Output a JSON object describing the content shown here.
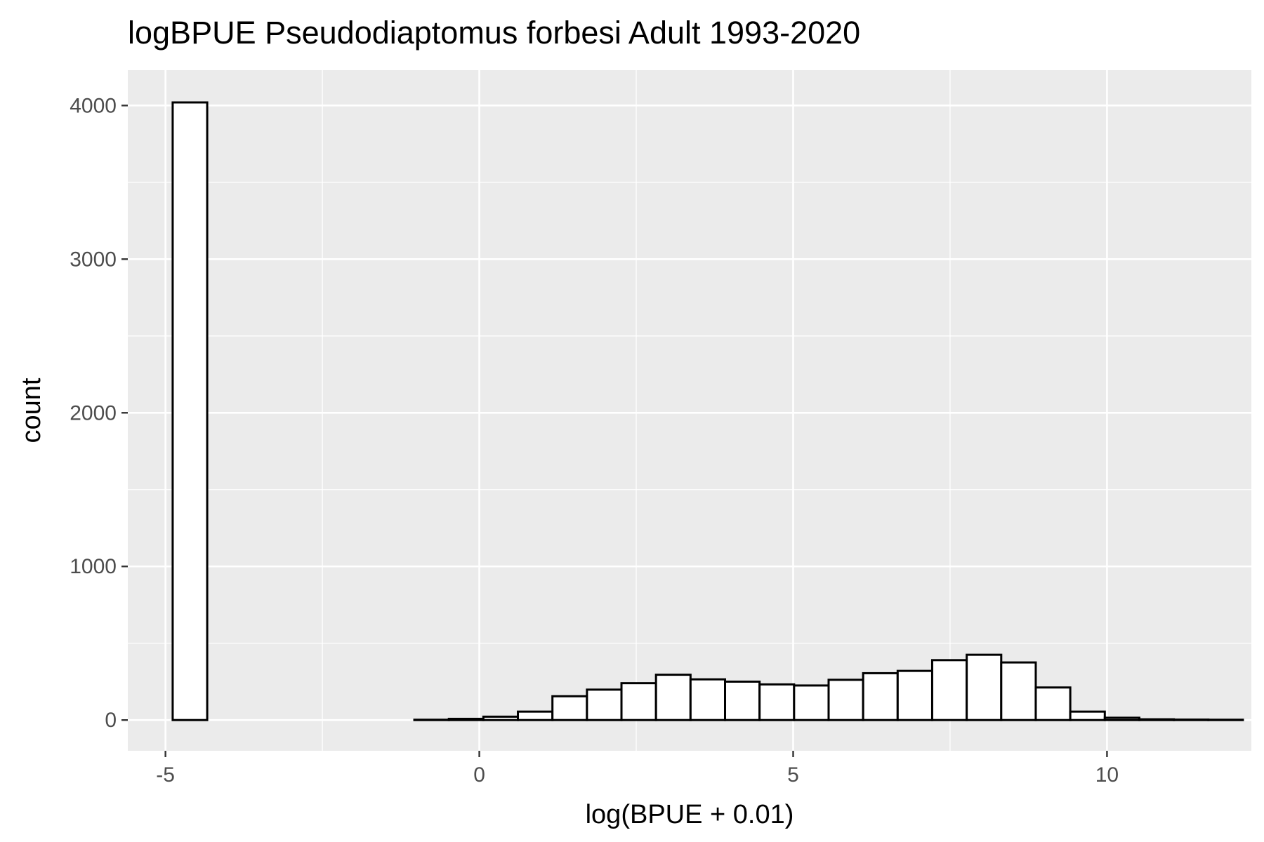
{
  "chart_data": {
    "type": "bar",
    "title": "logBPUE Pseudodiaptomus forbesi Adult  1993-2020",
    "xlabel": "log(BPUE + 0.01)",
    "ylabel": "count",
    "xlim": [
      -5.6,
      12.3
    ],
    "ylim": [
      -200,
      4230
    ],
    "x_ticks": [
      -5,
      0,
      5,
      10
    ],
    "x_tick_labels": [
      "-5",
      "0",
      "5",
      "10"
    ],
    "y_ticks": [
      0,
      1000,
      2000,
      3000,
      4000
    ],
    "y_tick_labels": [
      "0",
      "1000",
      "2000",
      "3000",
      "4000"
    ],
    "grid": true,
    "panel_background": "#ebebeb",
    "grid_color": "#ffffff",
    "bar_fill": "#ffffff",
    "bar_outline": "#000000",
    "bin_width": 0.55,
    "bin_centers": [
      -4.61,
      -4.06,
      -3.51,
      -2.96,
      -2.41,
      -1.86,
      -1.31,
      -0.76,
      -0.21,
      0.34,
      0.89,
      1.44,
      1.99,
      2.54,
      3.09,
      3.64,
      4.19,
      4.74,
      5.29,
      5.84,
      6.39,
      6.94,
      7.49,
      8.04,
      8.59,
      9.14,
      9.69,
      10.24,
      10.79,
      11.34,
      11.89
    ],
    "counts": [
      4020,
      0,
      0,
      0,
      0,
      0,
      0,
      2,
      8,
      22,
      55,
      155,
      198,
      240,
      295,
      265,
      250,
      232,
      225,
      262,
      305,
      320,
      390,
      425,
      375,
      212,
      55,
      15,
      5,
      3,
      2
    ]
  }
}
